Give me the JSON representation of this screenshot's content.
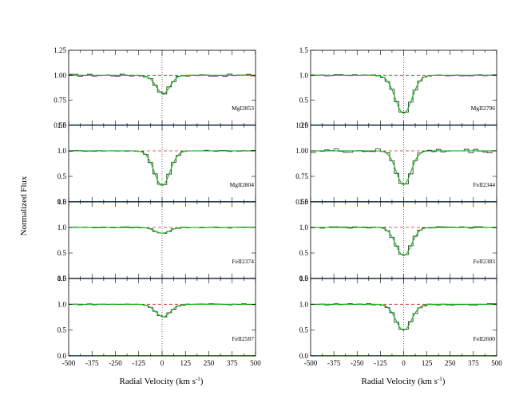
{
  "figure": {
    "ylabel": "Normalized Flux",
    "xlabel_main": "Radial Velocity (km s",
    "xlabel_sup": "-1",
    "xlabel_close": ")"
  },
  "chart_data": {
    "type": "line",
    "xlim": [
      -500,
      500
    ],
    "xticks": [
      "-500",
      "-375",
      "-250",
      "-125",
      "0",
      "125",
      "250",
      "375",
      "500"
    ],
    "continuum_level": 1.0,
    "reference_velocity": 0,
    "colors": {
      "data": "#000000",
      "fit": "#22bb22",
      "continuum": "#dd2222",
      "reference": "#000000",
      "baseline": "#3b7fd0"
    },
    "panels": [
      {
        "label": "MgI2853",
        "column": 0,
        "row": 0,
        "ylim": [
          0.5,
          1.25
        ],
        "yticks": [
          "0.50",
          "0.75",
          "1.00",
          "1.25"
        ],
        "min_flux": 0.82,
        "center": 5,
        "sigma": 38,
        "noise": 0.012
      },
      {
        "label": "MgII2804",
        "column": 0,
        "row": 1,
        "ylim": [
          0.0,
          1.5
        ],
        "yticks": [
          "0.0",
          "0.5",
          "1.0",
          "1.5"
        ],
        "min_flux": 0.32,
        "center": 0,
        "sigma": 42,
        "noise": 0.012
      },
      {
        "label": "FeII2374",
        "column": 0,
        "row": 2,
        "ylim": [
          0.0,
          1.5
        ],
        "yticks": [
          "0.0",
          "0.5",
          "1.0",
          "1.5"
        ],
        "min_flux": 0.89,
        "center": 0,
        "sigma": 40,
        "noise": 0.012
      },
      {
        "label": "FeII2587",
        "column": 0,
        "row": 3,
        "ylim": [
          0.0,
          1.5
        ],
        "yticks": [
          "0.0",
          "0.5",
          "1.0",
          "1.5"
        ],
        "min_flux": 0.76,
        "center": 5,
        "sigma": 40,
        "noise": 0.012
      },
      {
        "label": "MgII2796",
        "column": 1,
        "row": 0,
        "ylim": [
          0.0,
          1.5
        ],
        "yticks": [
          "0.0",
          "0.5",
          "1.0",
          "1.5"
        ],
        "min_flux": 0.24,
        "center": 0,
        "sigma": 45,
        "noise": 0.012
      },
      {
        "label": "FeII2344",
        "column": 1,
        "row": 1,
        "ylim": [
          0.5,
          1.25
        ],
        "yticks": [
          "0.50",
          "0.75",
          "1.00",
          "1.25"
        ],
        "min_flux": 0.67,
        "center": 0,
        "sigma": 40,
        "noise": 0.02
      },
      {
        "label": "FeII2383",
        "column": 1,
        "row": 2,
        "ylim": [
          0.0,
          1.5
        ],
        "yticks": [
          "0.0",
          "0.5",
          "1.0",
          "1.5"
        ],
        "min_flux": 0.45,
        "center": 0,
        "sigma": 42,
        "noise": 0.015
      },
      {
        "label": "FeII2600",
        "column": 1,
        "row": 3,
        "ylim": [
          0.0,
          1.5
        ],
        "yticks": [
          "0.0",
          "0.5",
          "1.0",
          "1.5"
        ],
        "min_flux": 0.5,
        "center": 0,
        "sigma": 42,
        "noise": 0.015
      }
    ]
  }
}
